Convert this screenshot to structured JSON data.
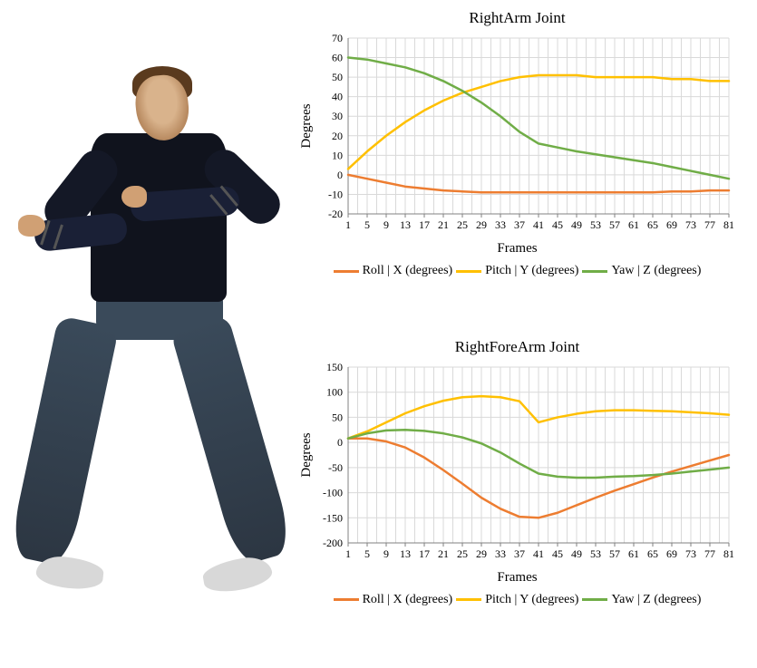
{
  "figure_desc": "3D character model, male, dark long-sleeve shirt with grey arm stripes, blue jeans, light shoes, arms crossed in front of chest",
  "chart1": {
    "type": "line",
    "title": "RightArm Joint",
    "title_fontsize": 17,
    "xlabel": "Frames",
    "ylabel": "Degrees",
    "label_fontsize": 15,
    "tick_fontsize": 12,
    "background_color": "#ffffff",
    "plot_bg_color": "#ffffff",
    "grid_color": "#d9d9d9",
    "axis_color": "#808080",
    "xlim": [
      1,
      81
    ],
    "xtick_step": 4,
    "xticks": [
      1,
      5,
      9,
      13,
      17,
      21,
      25,
      29,
      33,
      37,
      41,
      45,
      49,
      53,
      57,
      61,
      65,
      69,
      73,
      77,
      81
    ],
    "ylim": [
      -20,
      70
    ],
    "ytick_step": 10,
    "yticks": [
      -20,
      -10,
      0,
      10,
      20,
      30,
      40,
      50,
      60,
      70
    ],
    "line_width": 2.5,
    "series": [
      {
        "name": "Roll | X (degrees)",
        "color": "#ed7d31",
        "x": [
          1,
          5,
          9,
          13,
          17,
          21,
          25,
          29,
          33,
          37,
          41,
          45,
          49,
          53,
          57,
          61,
          65,
          69,
          73,
          77,
          81
        ],
        "y": [
          0,
          -2,
          -4,
          -6,
          -7,
          -8,
          -8.5,
          -9,
          -9,
          -9,
          -9,
          -9,
          -9,
          -9,
          -9,
          -9,
          -9,
          -8.5,
          -8.5,
          -8,
          -8
        ]
      },
      {
        "name": "Pitch | Y (degrees)",
        "color": "#ffc000",
        "x": [
          1,
          5,
          9,
          13,
          17,
          21,
          25,
          29,
          33,
          37,
          41,
          45,
          49,
          53,
          57,
          61,
          65,
          69,
          73,
          77,
          81
        ],
        "y": [
          3,
          12,
          20,
          27,
          33,
          38,
          42,
          45,
          48,
          50,
          51,
          51,
          51,
          50,
          50,
          50,
          50,
          49,
          49,
          48,
          48
        ]
      },
      {
        "name": "Yaw | Z (degrees)",
        "color": "#70ad47",
        "x": [
          1,
          5,
          9,
          13,
          17,
          21,
          25,
          29,
          33,
          37,
          41,
          45,
          49,
          53,
          57,
          61,
          65,
          69,
          73,
          77,
          81
        ],
        "y": [
          60,
          59,
          57,
          55,
          52,
          48,
          43,
          37,
          30,
          22,
          16,
          14,
          12,
          10.5,
          9,
          7.5,
          6,
          4,
          2,
          0,
          -2
        ]
      }
    ]
  },
  "chart2": {
    "type": "line",
    "title": "RightForeArm Joint",
    "title_fontsize": 17,
    "xlabel": "Frames",
    "ylabel": "Degrees",
    "label_fontsize": 15,
    "tick_fontsize": 12,
    "background_color": "#ffffff",
    "plot_bg_color": "#ffffff",
    "grid_color": "#d9d9d9",
    "axis_color": "#808080",
    "xlim": [
      1,
      81
    ],
    "xtick_step": 4,
    "xticks": [
      1,
      5,
      9,
      13,
      17,
      21,
      25,
      29,
      33,
      37,
      41,
      45,
      49,
      53,
      57,
      61,
      65,
      69,
      73,
      77,
      81
    ],
    "ylim": [
      -200,
      150
    ],
    "ytick_step": 50,
    "yticks": [
      -200,
      -150,
      -100,
      -50,
      0,
      50,
      100,
      150
    ],
    "line_width": 2.5,
    "series": [
      {
        "name": "Roll | X (degrees)",
        "color": "#ed7d31",
        "x": [
          1,
          5,
          9,
          13,
          17,
          21,
          25,
          29,
          33,
          37,
          41,
          45,
          49,
          53,
          57,
          61,
          65,
          69,
          73,
          77,
          81
        ],
        "y": [
          8,
          8,
          2,
          -10,
          -30,
          -55,
          -82,
          -110,
          -132,
          -148,
          -150,
          -140,
          -125,
          -110,
          -96,
          -83,
          -70,
          -58,
          -47,
          -36,
          -25
        ]
      },
      {
        "name": "Pitch | Y (degrees)",
        "color": "#ffc000",
        "x": [
          1,
          5,
          9,
          13,
          17,
          21,
          25,
          29,
          33,
          37,
          41,
          45,
          49,
          53,
          57,
          61,
          65,
          69,
          73,
          77,
          81
        ],
        "y": [
          8,
          22,
          40,
          58,
          72,
          83,
          90,
          92,
          90,
          82,
          40,
          50,
          57,
          62,
          64,
          64,
          63,
          62,
          60,
          58,
          55
        ]
      },
      {
        "name": "Yaw | Z (degrees)",
        "color": "#70ad47",
        "x": [
          1,
          5,
          9,
          13,
          17,
          21,
          25,
          29,
          33,
          37,
          41,
          45,
          49,
          53,
          57,
          61,
          65,
          69,
          73,
          77,
          81
        ],
        "y": [
          8,
          18,
          24,
          25,
          23,
          18,
          10,
          -2,
          -20,
          -42,
          -62,
          -68,
          -70,
          -70,
          -68,
          -67,
          -65,
          -62,
          -58,
          -54,
          -50
        ]
      }
    ]
  },
  "legend": {
    "items": [
      {
        "label": "Roll | X (degrees)",
        "color": "#ed7d31"
      },
      {
        "label": "Pitch | Y (degrees)",
        "color": "#ffc000"
      },
      {
        "label": "Yaw | Z (degrees)",
        "color": "#70ad47"
      }
    ],
    "swatch_width": 28,
    "swatch_height": 3,
    "fontsize": 14
  }
}
